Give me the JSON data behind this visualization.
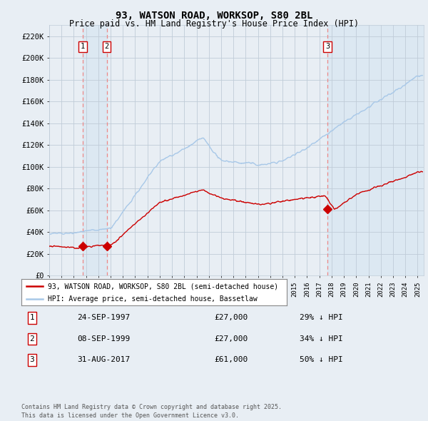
{
  "title": "93, WATSON ROAD, WORKSOP, S80 2BL",
  "subtitle": "Price paid vs. HM Land Registry's House Price Index (HPI)",
  "ylim": [
    0,
    230000
  ],
  "yticks": [
    0,
    20000,
    40000,
    60000,
    80000,
    100000,
    120000,
    140000,
    160000,
    180000,
    200000,
    220000
  ],
  "ytick_labels": [
    "£0",
    "£20K",
    "£40K",
    "£60K",
    "£80K",
    "£100K",
    "£120K",
    "£140K",
    "£160K",
    "£180K",
    "£200K",
    "£220K"
  ],
  "hpi_color": "#a8c8e8",
  "price_color": "#cc0000",
  "vline_color": "#ee8888",
  "shade_color": "#ddeeff",
  "marker_color": "#cc0000",
  "background_color": "#e8eef4",
  "plot_bg_color": "#e8eef4",
  "grid_color": "#c0ccd8",
  "legend_entries": [
    "93, WATSON ROAD, WORKSOP, S80 2BL (semi-detached house)",
    "HPI: Average price, semi-detached house, Bassetlaw"
  ],
  "transactions": [
    {
      "num": 1,
      "date": "24-SEP-1997",
      "price": 27000,
      "pct": "29%",
      "x_year": 1997.73
    },
    {
      "num": 2,
      "date": "08-SEP-1999",
      "price": 27000,
      "pct": "34%",
      "x_year": 1999.69
    },
    {
      "num": 3,
      "date": "31-AUG-2017",
      "price": 61000,
      "pct": "50%",
      "x_year": 2017.66
    }
  ],
  "table_rows": [
    {
      "num": 1,
      "date": "24-SEP-1997",
      "price": "£27,000",
      "pct": "29% ↓ HPI"
    },
    {
      "num": 2,
      "date": "08-SEP-1999",
      "price": "£27,000",
      "pct": "34% ↓ HPI"
    },
    {
      "num": 3,
      "date": "31-AUG-2017",
      "price": "£61,000",
      "pct": "50% ↓ HPI"
    }
  ],
  "footer": "Contains HM Land Registry data © Crown copyright and database right 2025.\nThis data is licensed under the Open Government Licence v3.0.",
  "xmin": 1995.0,
  "xmax": 2025.5
}
